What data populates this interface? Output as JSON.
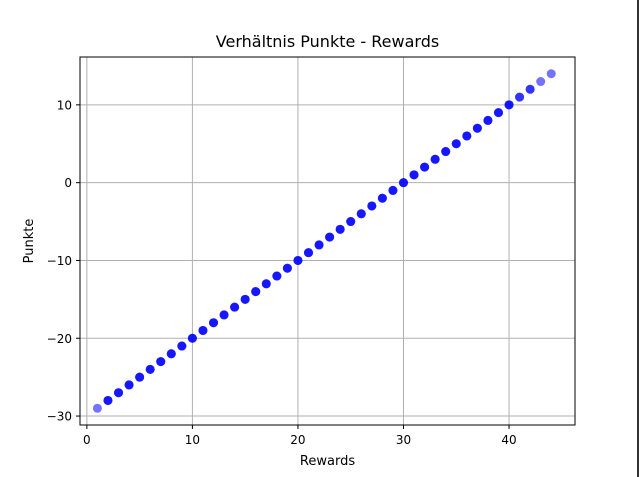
{
  "chart_data": {
    "type": "scatter",
    "title": "Verhältnis Punkte - Rewards",
    "xlabel": "Rewards",
    "ylabel": "Punkte",
    "xlim": [
      -0.65,
      46.25
    ],
    "ylim": [
      -31.15,
      16.15
    ],
    "xticks": [
      0,
      10,
      20,
      30,
      40
    ],
    "yticks": [
      -30,
      -20,
      -10,
      0,
      10
    ],
    "grid": true,
    "marker_color": "#0000ff",
    "marker_alpha": 0.55,
    "series": [
      {
        "x": [
          1,
          2,
          3,
          4,
          5,
          6,
          7,
          8,
          9,
          10,
          11,
          12,
          13,
          14,
          15,
          16,
          17,
          18,
          19,
          20,
          21,
          22,
          23,
          24,
          25,
          26,
          27,
          28,
          29,
          30,
          31,
          32,
          33,
          34,
          35,
          36,
          37,
          38,
          39,
          40,
          41,
          42,
          43,
          44
        ],
        "y": [
          -29,
          -28,
          -27,
          -26,
          -25,
          -24,
          -23,
          -22,
          -21,
          -20,
          -19,
          -18,
          -17,
          -16,
          -15,
          -14,
          -13,
          -12,
          -11,
          -10,
          -9,
          -8,
          -7,
          -6,
          -5,
          -4,
          -3,
          -2,
          -1,
          0,
          1,
          2,
          3,
          4,
          5,
          6,
          7,
          8,
          9,
          10,
          11,
          12,
          13,
          14
        ],
        "weight": [
          1,
          3,
          3,
          3,
          3,
          3,
          3,
          3,
          3,
          3,
          3,
          3,
          3,
          3,
          3,
          3,
          3,
          3,
          3,
          3,
          3,
          3,
          3,
          3,
          3,
          3,
          3,
          3,
          3,
          3,
          3,
          3,
          3,
          3,
          3,
          3,
          3,
          3,
          3,
          3,
          2,
          2,
          1,
          1
        ]
      }
    ]
  }
}
